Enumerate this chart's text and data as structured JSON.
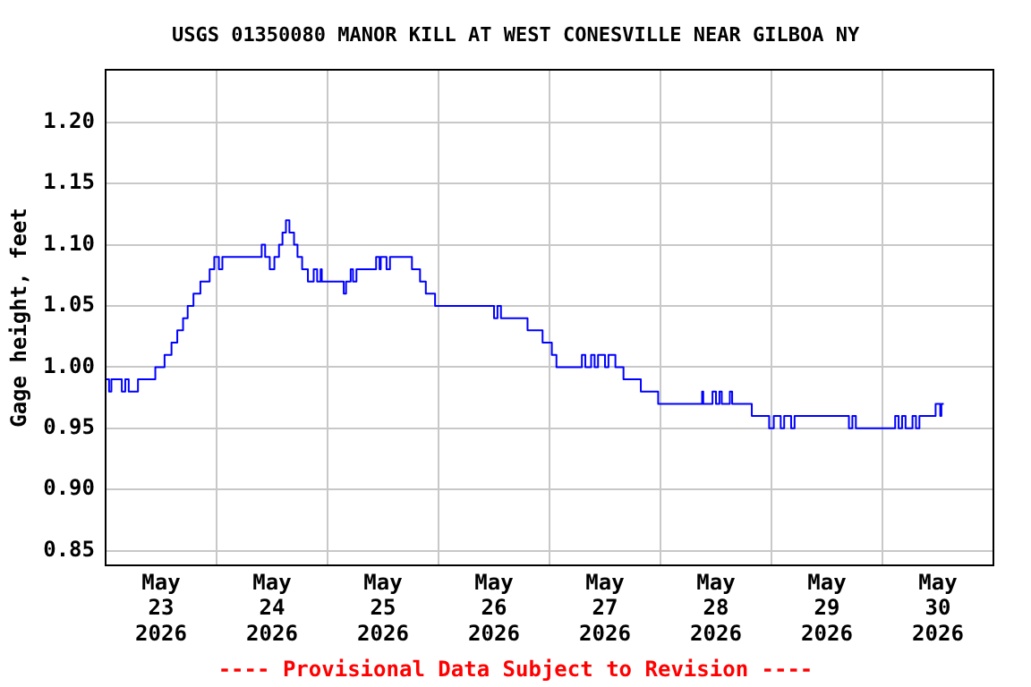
{
  "chart_data": {
    "type": "step",
    "title": "USGS 01350080 MANOR KILL AT WEST CONESVILLE NEAR GILBOA NY",
    "ylabel": "Gage height, feet",
    "annotations": [
      "---- Provisional Data Subject to Revision ----"
    ],
    "x": [
      "2026-05-23T00:00",
      "2026-05-23T00:45",
      "2026-05-23T01:15",
      "2026-05-23T03:30",
      "2026-05-23T04:15",
      "2026-05-23T05:00",
      "2026-05-23T06:30",
      "2026-05-23T07:00",
      "2026-05-23T10:45",
      "2026-05-23T12:45",
      "2026-05-23T14:15",
      "2026-05-23T15:30",
      "2026-05-23T16:45",
      "2026-05-23T17:45",
      "2026-05-23T19:00",
      "2026-05-23T20:30",
      "2026-05-23T22:30",
      "2026-05-23T23:30",
      "2026-05-24T00:30",
      "2026-05-24T01:15",
      "2026-05-24T09:45",
      "2026-05-24T10:30",
      "2026-05-24T11:30",
      "2026-05-24T12:30",
      "2026-05-24T13:30",
      "2026-05-24T14:15",
      "2026-05-24T15:00",
      "2026-05-24T15:45",
      "2026-05-24T16:45",
      "2026-05-24T17:30",
      "2026-05-24T18:30",
      "2026-05-24T19:45",
      "2026-05-24T21:00",
      "2026-05-24T21:45",
      "2026-05-24T22:30",
      "2026-05-24T22:45",
      "2026-05-25T03:30",
      "2026-05-25T04:00",
      "2026-05-25T05:00",
      "2026-05-25T05:30",
      "2026-05-25T06:15",
      "2026-05-25T10:30",
      "2026-05-25T11:15",
      "2026-05-25T11:30",
      "2026-05-25T12:45",
      "2026-05-25T13:30",
      "2026-05-25T18:15",
      "2026-05-25T20:00",
      "2026-05-25T21:15",
      "2026-05-25T23:15",
      "2026-05-26T12:00",
      "2026-05-26T12:45",
      "2026-05-26T13:30",
      "2026-05-26T19:15",
      "2026-05-26T22:30",
      "2026-05-27T00:30",
      "2026-05-27T01:30",
      "2026-05-27T07:00",
      "2026-05-27T07:45",
      "2026-05-27T09:00",
      "2026-05-27T09:45",
      "2026-05-27T10:30",
      "2026-05-27T12:00",
      "2026-05-27T12:45",
      "2026-05-27T14:15",
      "2026-05-27T16:00",
      "2026-05-27T19:45",
      "2026-05-27T23:30",
      "2026-05-28T09:00",
      "2026-05-28T09:15",
      "2026-05-28T11:15",
      "2026-05-28T12:00",
      "2026-05-28T12:45",
      "2026-05-28T13:15",
      "2026-05-28T15:00",
      "2026-05-28T15:30",
      "2026-05-28T19:45",
      "2026-05-28T23:30",
      "2026-05-29T00:30",
      "2026-05-29T02:00",
      "2026-05-29T02:45",
      "2026-05-29T04:15",
      "2026-05-29T05:00",
      "2026-05-29T16:45",
      "2026-05-29T17:30",
      "2026-05-29T18:15",
      "2026-05-30T02:45",
      "2026-05-30T03:30",
      "2026-05-30T04:15",
      "2026-05-30T05:00",
      "2026-05-30T06:30",
      "2026-05-30T07:15",
      "2026-05-30T08:00",
      "2026-05-30T11:30",
      "2026-05-30T12:30",
      "2026-05-30T12:45",
      "2026-05-30T13:15"
    ],
    "series": [
      {
        "color": "#0000ff",
        "values": [
          0.99,
          0.98,
          0.99,
          0.98,
          0.99,
          0.98,
          0.98,
          0.99,
          1.0,
          1.01,
          1.02,
          1.03,
          1.04,
          1.05,
          1.06,
          1.07,
          1.08,
          1.09,
          1.08,
          1.09,
          1.1,
          1.09,
          1.08,
          1.09,
          1.1,
          1.11,
          1.12,
          1.11,
          1.1,
          1.09,
          1.08,
          1.07,
          1.08,
          1.07,
          1.08,
          1.07,
          1.06,
          1.07,
          1.08,
          1.07,
          1.08,
          1.09,
          1.08,
          1.09,
          1.08,
          1.09,
          1.08,
          1.07,
          1.06,
          1.05,
          1.04,
          1.05,
          1.04,
          1.03,
          1.02,
          1.01,
          1.0,
          1.01,
          1.0,
          1.01,
          1.0,
          1.01,
          1.0,
          1.01,
          1.0,
          0.99,
          0.98,
          0.97,
          0.98,
          0.97,
          0.98,
          0.97,
          0.98,
          0.97,
          0.98,
          0.97,
          0.96,
          0.95,
          0.96,
          0.95,
          0.96,
          0.95,
          0.96,
          0.95,
          0.96,
          0.95,
          0.96,
          0.95,
          0.96,
          0.95,
          0.96,
          0.95,
          0.96,
          0.97,
          0.96,
          0.97,
          0.97
        ]
      }
    ],
    "xlim": [
      "2026-05-23T00:00",
      "2026-05-31T00:00"
    ],
    "xticks": [
      {
        "value": "2026-05-23T00:00",
        "label": null
      },
      {
        "value": "2026-05-23T12:00",
        "label": "May 23 2026"
      },
      {
        "value": "2026-05-24T00:00",
        "label": null
      },
      {
        "value": "2026-05-24T12:00",
        "label": "May 24 2026"
      },
      {
        "value": "2026-05-25T00:00",
        "label": null
      },
      {
        "value": "2026-05-25T12:00",
        "label": "May 25 2026"
      },
      {
        "value": "2026-05-26T00:00",
        "label": null
      },
      {
        "value": "2026-05-26T12:00",
        "label": "May 26 2026"
      },
      {
        "value": "2026-05-27T00:00",
        "label": null
      },
      {
        "value": "2026-05-27T12:00",
        "label": "May 27 2026"
      },
      {
        "value": "2026-05-28T00:00",
        "label": null
      },
      {
        "value": "2026-05-28T12:00",
        "label": "May 28 2026"
      },
      {
        "value": "2026-05-29T00:00",
        "label": null
      },
      {
        "value": "2026-05-29T12:00",
        "label": "May 29 2026"
      },
      {
        "value": "2026-05-30T00:00",
        "label": null
      },
      {
        "value": "2026-05-30T12:00",
        "label": "May 30 2026"
      },
      {
        "value": "2026-05-31T00:00",
        "label": null
      }
    ],
    "ylim": [
      0.838,
      1.243
    ],
    "yticks": [
      {
        "value": 0.85,
        "label": "0.85"
      },
      {
        "value": 0.9,
        "label": "0.90"
      },
      {
        "value": 0.95,
        "label": "0.95"
      },
      {
        "value": 1.0,
        "label": "1.00"
      },
      {
        "value": 1.05,
        "label": "1.05"
      },
      {
        "value": 1.1,
        "label": "1.10"
      },
      {
        "value": 1.15,
        "label": "1.15"
      },
      {
        "value": 1.2,
        "label": "1.20"
      }
    ],
    "grid": true,
    "legend": false,
    "marker": "none",
    "line_style": "solid"
  }
}
